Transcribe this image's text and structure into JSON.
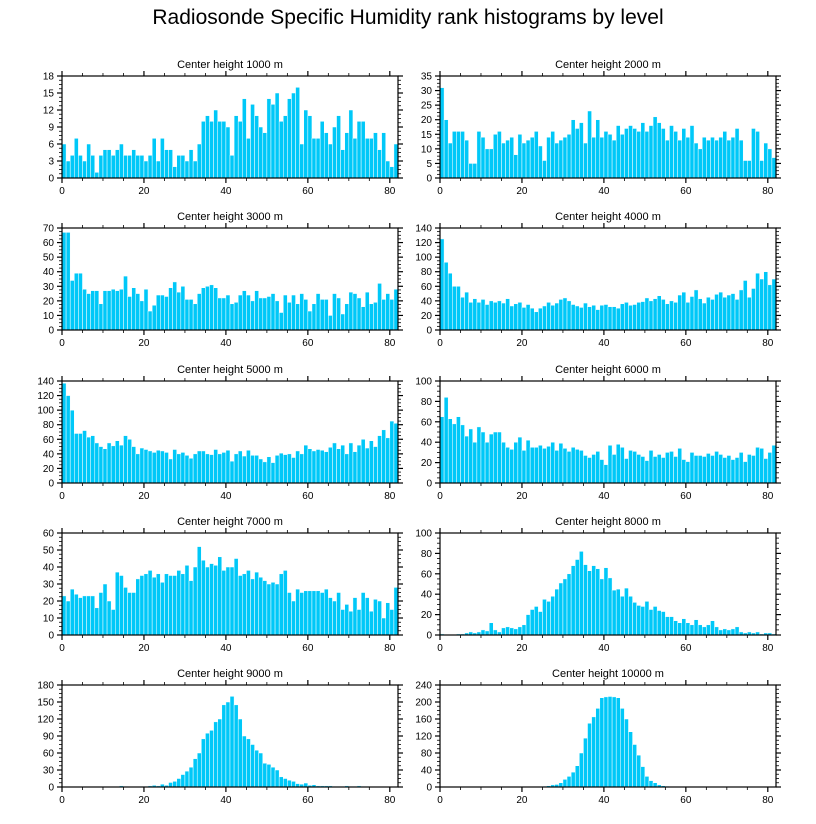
{
  "title": "Radiosonde Specific Humidity rank histograms by level",
  "colors": {
    "bar": "#00c8f8",
    "bar_edge": "#ffffff",
    "axis": "#000000"
  },
  "chart_data": [
    {
      "type": "bar",
      "title": "Center height 1000 m",
      "xlim": [
        0,
        82
      ],
      "ylim": [
        0,
        18
      ],
      "xticks": [
        0,
        20,
        40,
        60,
        80
      ],
      "yticks": [
        0,
        3,
        6,
        9,
        12,
        15,
        18
      ],
      "values": [
        6,
        3,
        4,
        7,
        4,
        3,
        6,
        4,
        1,
        4,
        5,
        5,
        4,
        5,
        6,
        4,
        4,
        5,
        4,
        4,
        3,
        4,
        7,
        3,
        7,
        5,
        5,
        2,
        4,
        4,
        3,
        5,
        3,
        6,
        10,
        11,
        10,
        12,
        10,
        10,
        9,
        4,
        11,
        10,
        14,
        7,
        13,
        11,
        9,
        8,
        14,
        13,
        15,
        10,
        11,
        14,
        15,
        16,
        6,
        12,
        11,
        7,
        7,
        10,
        8,
        6,
        9,
        11,
        5,
        8,
        12,
        7,
        10,
        10,
        7,
        7,
        8,
        5,
        8,
        3,
        2,
        6
      ]
    },
    {
      "type": "bar",
      "title": "Center height 2000 m",
      "xlim": [
        0,
        82
      ],
      "ylim": [
        0,
        35
      ],
      "xticks": [
        0,
        20,
        40,
        60,
        80
      ],
      "yticks": [
        0,
        5,
        10,
        15,
        20,
        25,
        30,
        35
      ],
      "values": [
        31,
        20,
        12,
        16,
        16,
        16,
        13,
        5,
        5,
        16,
        14,
        10,
        10,
        15,
        16,
        12,
        13,
        14,
        8,
        15,
        12,
        13,
        14,
        16,
        11,
        6,
        14,
        16,
        12,
        13,
        14,
        15,
        20,
        17,
        19,
        12,
        23,
        14,
        20,
        14,
        16,
        15,
        13,
        18,
        15,
        17,
        18,
        17,
        16,
        19,
        16,
        18,
        21,
        19,
        17,
        13,
        18,
        16,
        13,
        17,
        14,
        18,
        12,
        10,
        14,
        13,
        14,
        13,
        14,
        16,
        13,
        14,
        17,
        13,
        6,
        6,
        17,
        16,
        6,
        12,
        10,
        7
      ]
    },
    {
      "type": "bar",
      "title": "Center height 3000 m",
      "xlim": [
        0,
        82
      ],
      "ylim": [
        0,
        70
      ],
      "xticks": [
        0,
        20,
        40,
        60,
        80
      ],
      "yticks": [
        0,
        10,
        20,
        30,
        40,
        50,
        60,
        70
      ],
      "values": [
        67,
        67,
        34,
        39,
        39,
        28,
        25,
        27,
        27,
        18,
        27,
        27,
        28,
        27,
        28,
        37,
        23,
        29,
        25,
        20,
        28,
        13,
        17,
        24,
        24,
        23,
        29,
        33,
        26,
        30,
        21,
        21,
        18,
        25,
        29,
        30,
        31,
        29,
        22,
        22,
        24,
        18,
        19,
        24,
        27,
        24,
        20,
        27,
        22,
        22,
        23,
        25,
        20,
        12,
        24,
        19,
        24,
        18,
        25,
        21,
        13,
        18,
        25,
        21,
        21,
        10,
        25,
        22,
        11,
        18,
        26,
        25,
        22,
        16,
        26,
        18,
        19,
        32,
        21,
        25,
        21,
        28
      ]
    },
    {
      "type": "bar",
      "title": "Center height 4000 m",
      "xlim": [
        0,
        82
      ],
      "ylim": [
        0,
        140
      ],
      "xticks": [
        0,
        20,
        40,
        60,
        80
      ],
      "yticks": [
        0,
        20,
        40,
        60,
        80,
        100,
        120,
        140
      ],
      "values": [
        125,
        93,
        78,
        60,
        60,
        45,
        52,
        38,
        43,
        38,
        42,
        35,
        40,
        38,
        40,
        37,
        43,
        33,
        36,
        38,
        31,
        35,
        30,
        25,
        30,
        33,
        38,
        34,
        37,
        42,
        44,
        40,
        35,
        33,
        31,
        37,
        32,
        34,
        28,
        34,
        35,
        32,
        32,
        30,
        36,
        38,
        34,
        35,
        38,
        39,
        44,
        40,
        43,
        47,
        42,
        36,
        40,
        38,
        48,
        52,
        38,
        46,
        55,
        43,
        37,
        45,
        42,
        49,
        52,
        45,
        48,
        50,
        42,
        55,
        68,
        45,
        57,
        78,
        70,
        80,
        62,
        70
      ]
    },
    {
      "type": "bar",
      "title": "Center height 5000 m",
      "xlim": [
        0,
        82
      ],
      "ylim": [
        0,
        140
      ],
      "xticks": [
        0,
        20,
        40,
        60,
        80
      ],
      "yticks": [
        0,
        20,
        40,
        60,
        80,
        100,
        120,
        140
      ],
      "values": [
        137,
        120,
        100,
        68,
        68,
        72,
        63,
        65,
        55,
        50,
        47,
        55,
        51,
        58,
        52,
        65,
        60,
        50,
        40,
        48,
        46,
        44,
        42,
        45,
        44,
        42,
        33,
        46,
        40,
        42,
        38,
        34,
        40,
        44,
        44,
        40,
        39,
        46,
        40,
        42,
        45,
        30,
        40,
        44,
        37,
        45,
        38,
        38,
        33,
        29,
        36,
        28,
        38,
        41,
        39,
        40,
        35,
        44,
        40,
        52,
        47,
        44,
        46,
        45,
        43,
        49,
        55,
        47,
        52,
        40,
        55,
        43,
        52,
        60,
        48,
        58,
        50,
        65,
        73,
        62,
        85,
        82
      ]
    },
    {
      "type": "bar",
      "title": "Center height 6000 m",
      "xlim": [
        0,
        82
      ],
      "ylim": [
        0,
        100
      ],
      "xticks": [
        0,
        20,
        40,
        60,
        80
      ],
      "yticks": [
        0,
        20,
        40,
        60,
        80,
        100
      ],
      "values": [
        65,
        84,
        63,
        58,
        65,
        57,
        46,
        53,
        40,
        55,
        50,
        40,
        48,
        50,
        50,
        40,
        35,
        33,
        40,
        45,
        32,
        42,
        35,
        35,
        37,
        34,
        36,
        40,
        32,
        39,
        34,
        31,
        35,
        33,
        32,
        27,
        25,
        28,
        31,
        23,
        18,
        37,
        28,
        38,
        35,
        24,
        32,
        31,
        28,
        26,
        22,
        32,
        26,
        28,
        25,
        30,
        31,
        26,
        34,
        23,
        21,
        30,
        27,
        27,
        26,
        29,
        27,
        31,
        28,
        25,
        27,
        23,
        25,
        30,
        21,
        28,
        27,
        35,
        34,
        24,
        30,
        37
      ]
    },
    {
      "type": "bar",
      "title": "Center height 7000 m",
      "xlim": [
        0,
        82
      ],
      "ylim": [
        0,
        60
      ],
      "xticks": [
        0,
        20,
        40,
        60,
        80
      ],
      "yticks": [
        0,
        10,
        20,
        30,
        40,
        50,
        60
      ],
      "values": [
        23,
        20,
        27,
        24,
        22,
        23,
        23,
        23,
        16,
        25,
        30,
        20,
        15,
        37,
        35,
        28,
        25,
        25,
        33,
        35,
        36,
        38,
        34,
        36,
        31,
        36,
        35,
        35,
        38,
        36,
        41,
        32,
        40,
        52,
        44,
        40,
        42,
        41,
        46,
        38,
        40,
        40,
        45,
        35,
        36,
        38,
        33,
        37,
        34,
        32,
        30,
        31,
        30,
        36,
        38,
        25,
        20,
        27,
        25,
        26,
        26,
        26,
        26,
        25,
        27,
        22,
        20,
        25,
        15,
        18,
        14,
        22,
        15,
        25,
        22,
        14,
        21,
        20,
        10,
        19,
        15,
        28
      ]
    },
    {
      "type": "bar",
      "title": "Center height 8000 m",
      "xlim": [
        0,
        82
      ],
      "ylim": [
        0,
        100
      ],
      "xticks": [
        0,
        20,
        40,
        60,
        80
      ],
      "yticks": [
        0,
        20,
        40,
        60,
        80,
        100
      ],
      "values": [
        1,
        0,
        0,
        0,
        1,
        1,
        2,
        3,
        2,
        3,
        5,
        4,
        12,
        5,
        3,
        7,
        8,
        7,
        6,
        8,
        10,
        20,
        25,
        28,
        23,
        35,
        33,
        38,
        45,
        51,
        55,
        60,
        68,
        74,
        82,
        69,
        63,
        68,
        65,
        55,
        66,
        56,
        44,
        45,
        38,
        46,
        38,
        32,
        29,
        28,
        33,
        25,
        28,
        24,
        23,
        18,
        18,
        14,
        12,
        16,
        12,
        10,
        15,
        10,
        8,
        10,
        14,
        8,
        5,
        6,
        5,
        6,
        8,
        3,
        2,
        3,
        2,
        3,
        1,
        2,
        2,
        1
      ]
    },
    {
      "type": "bar",
      "title": "Center height 9000 m",
      "xlim": [
        0,
        82
      ],
      "ylim": [
        0,
        180
      ],
      "xticks": [
        0,
        20,
        40,
        60,
        80
      ],
      "yticks": [
        0,
        30,
        60,
        90,
        120,
        150,
        180
      ],
      "values": [
        0,
        0,
        0,
        0,
        0,
        0,
        0,
        0,
        0,
        0,
        0,
        0,
        0,
        0,
        2,
        1,
        0,
        0,
        0,
        1,
        1,
        2,
        3,
        2,
        5,
        3,
        8,
        10,
        15,
        22,
        28,
        35,
        50,
        60,
        85,
        95,
        100,
        115,
        120,
        145,
        150,
        160,
        145,
        120,
        90,
        85,
        75,
        65,
        60,
        42,
        40,
        35,
        30,
        18,
        15,
        12,
        10,
        6,
        5,
        7,
        3,
        4,
        2,
        2,
        2,
        2,
        1,
        1,
        1,
        2,
        1,
        1,
        2,
        1,
        1,
        0,
        0,
        0,
        0,
        0,
        0,
        0
      ]
    },
    {
      "type": "bar",
      "title": "Center height 10000 m",
      "xlim": [
        0,
        82
      ],
      "ylim": [
        0,
        240
      ],
      "xticks": [
        0,
        20,
        40,
        60,
        80
      ],
      "yticks": [
        0,
        40,
        80,
        120,
        160,
        200,
        240
      ],
      "values": [
        0,
        0,
        0,
        0,
        0,
        0,
        0,
        0,
        0,
        0,
        0,
        0,
        0,
        0,
        0,
        0,
        0,
        0,
        0,
        0,
        0,
        0,
        0,
        0,
        0,
        2,
        3,
        5,
        6,
        10,
        18,
        25,
        35,
        50,
        80,
        115,
        150,
        165,
        185,
        210,
        212,
        213,
        212,
        210,
        185,
        160,
        130,
        100,
        75,
        48,
        25,
        15,
        10,
        5,
        3,
        2,
        1,
        1,
        0,
        0,
        0,
        0,
        0,
        0,
        0,
        0,
        0,
        0,
        0,
        0,
        0,
        0,
        0,
        0,
        0,
        0,
        0,
        0,
        0,
        0,
        0,
        0
      ]
    }
  ]
}
